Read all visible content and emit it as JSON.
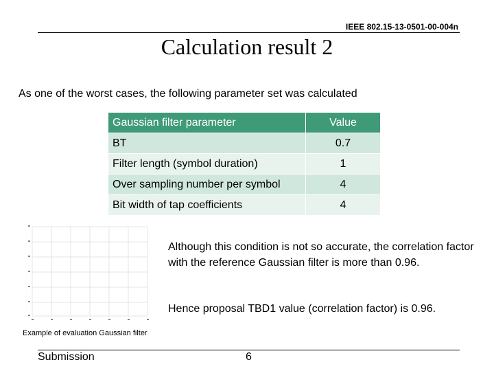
{
  "header": {
    "doc_id": "IEEE 802.15-13-0501-00-004n"
  },
  "title": "Calculation result 2",
  "intro": "As one of the worst cases, the following parameter set was calculated",
  "table": {
    "columns": [
      "Gaussian filter parameter",
      "Value"
    ],
    "rows": [
      [
        "BT",
        0.7
      ],
      [
        "Filter length (symbol duration)",
        1
      ],
      [
        "Over sampling number per symbol",
        4
      ],
      [
        "Bit width of tap coefficients",
        4
      ]
    ]
  },
  "paragraphs": [
    "Although this condition is not so accurate, the correlation factor with the reference Gaussian filter is more than 0.96.",
    "Hence proposal TBD1 value (correlation factor) is 0.96."
  ],
  "caption": "Example of evaluation Gaussian filter",
  "footer": {
    "left": "Submission",
    "page": 6
  }
}
